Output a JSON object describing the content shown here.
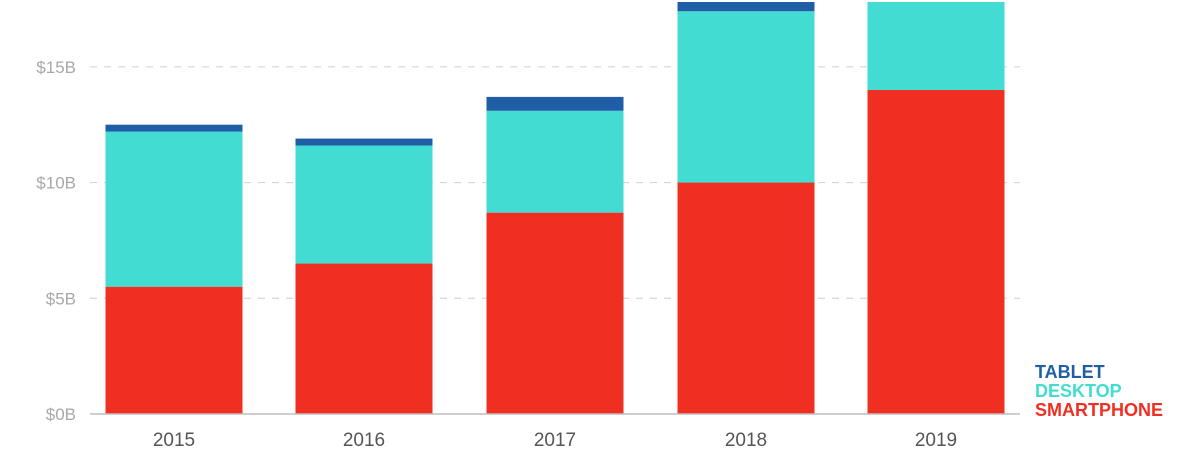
{
  "chart_data": {
    "type": "bar",
    "stacked": true,
    "categories": [
      "2015",
      "2016",
      "2017",
      "2018",
      "2019"
    ],
    "series": [
      {
        "name": "SMARTPHONE",
        "values": [
          5.5,
          6.5,
          8.7,
          10.0,
          14.0
        ],
        "color": "#f12e22"
      },
      {
        "name": "DESKTOP",
        "values": [
          6.7,
          5.1,
          4.4,
          7.4,
          3.8
        ],
        "color": "#43dcd2"
      },
      {
        "name": "TABLET",
        "values": [
          0.3,
          0.3,
          0.6,
          0.4,
          0.0
        ],
        "color": "#1f5ea6"
      }
    ],
    "y_ticks": [
      {
        "value": 0,
        "label": "$0B"
      },
      {
        "value": 5,
        "label": "$5B"
      },
      {
        "value": 10,
        "label": "$10B"
      },
      {
        "value": 15,
        "label": "$15B"
      }
    ],
    "ylim": [
      0,
      17.8
    ],
    "grid": true,
    "grid_style": "dashed",
    "gridline_color": "#d6d6d6",
    "axis_color": "#bdbdbd",
    "legend_placement": "bottom-right",
    "legend_order": [
      "TABLET",
      "DESKTOP",
      "SMARTPHONE"
    ],
    "title": "",
    "xlabel": "",
    "ylabel": ""
  }
}
